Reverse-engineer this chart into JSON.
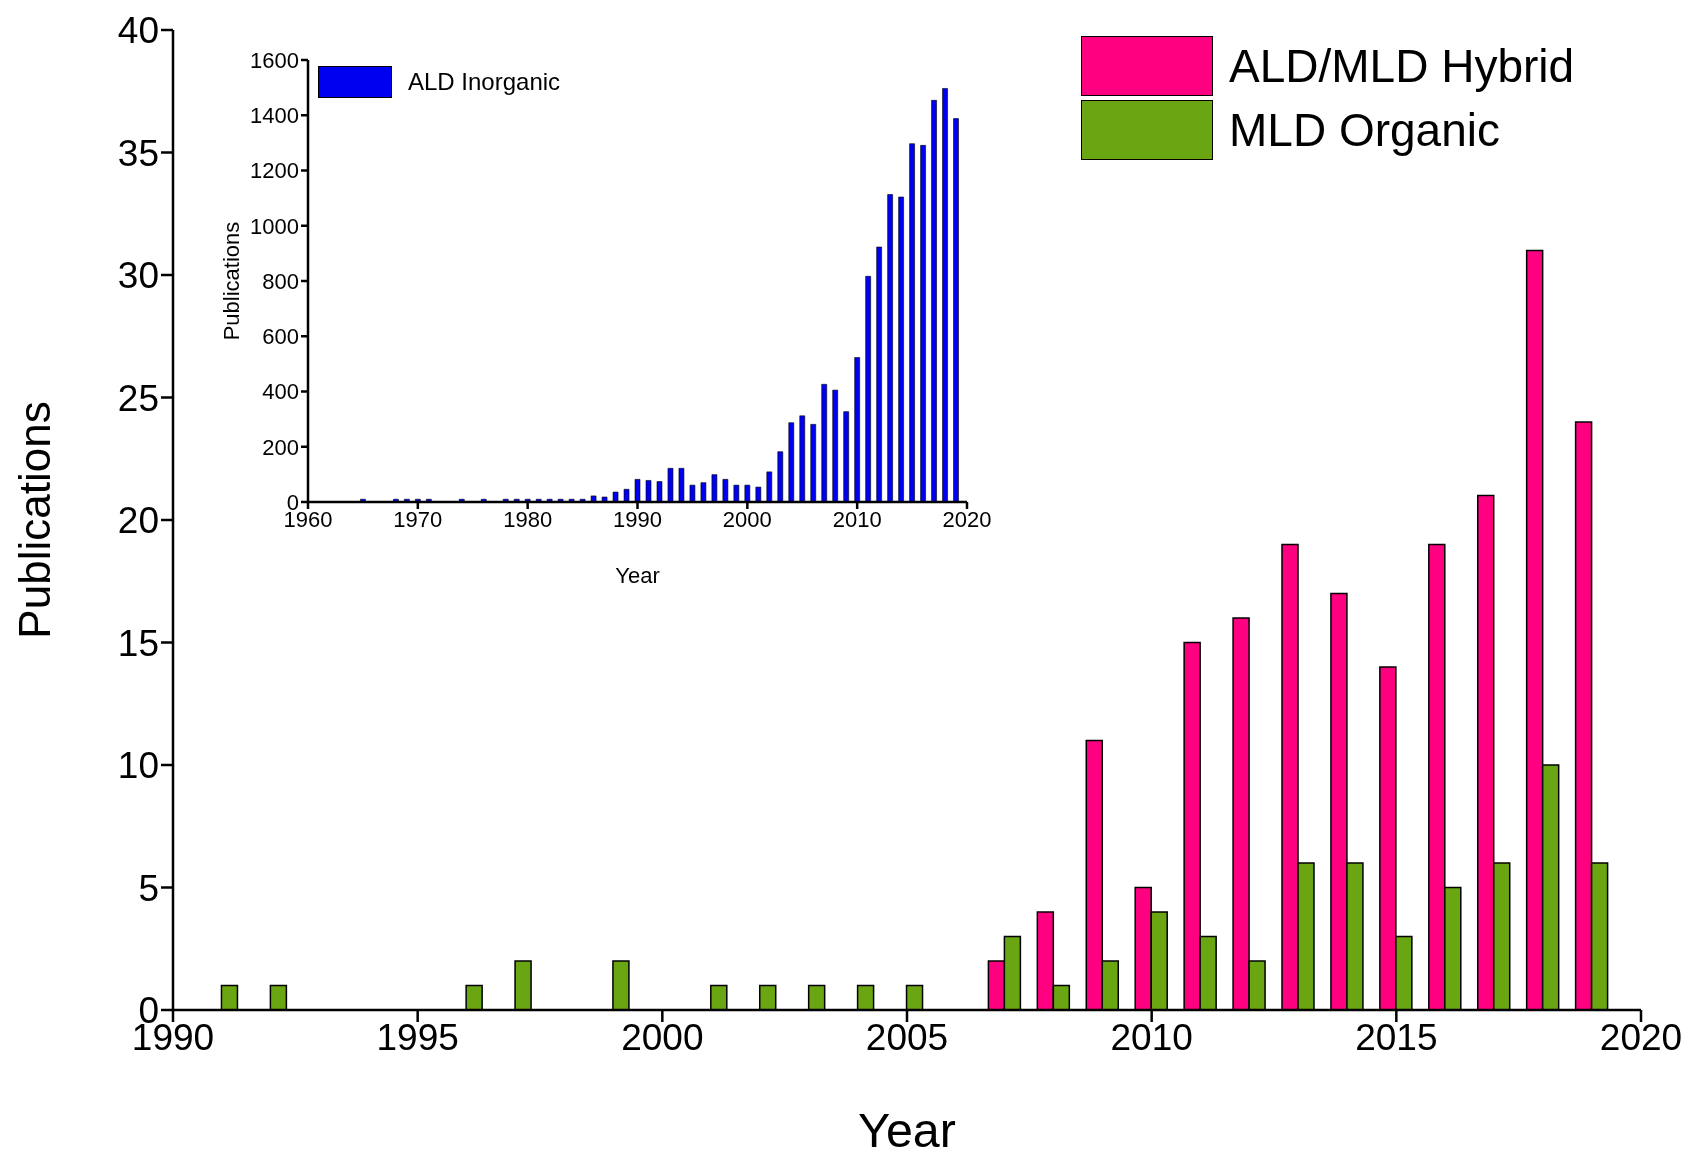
{
  "chart_data": [
    {
      "type": "bar",
      "xlabel": "Year",
      "ylabel": "Publications",
      "x": [
        1991,
        1992,
        1993,
        1994,
        1995,
        1996,
        1997,
        1998,
        1999,
        2000,
        2001,
        2002,
        2003,
        2004,
        2005,
        2006,
        2007,
        2008,
        2009,
        2010,
        2011,
        2012,
        2013,
        2014,
        2015,
        2016,
        2017,
        2018,
        2019
      ],
      "series": [
        {
          "name": "ALD/MLD Hybrid",
          "color": "#ff0080",
          "values": [
            null,
            null,
            null,
            null,
            null,
            null,
            null,
            null,
            null,
            null,
            null,
            null,
            null,
            null,
            null,
            null,
            2,
            4,
            11,
            5,
            15,
            16,
            19,
            17,
            14,
            19,
            21,
            31,
            24
          ]
        },
        {
          "name": "MLD Organic",
          "color": "#6aa512",
          "values": [
            1,
            1,
            null,
            null,
            null,
            1,
            2,
            null,
            2,
            null,
            1,
            1,
            1,
            1,
            1,
            null,
            3,
            1,
            2,
            4,
            3,
            2,
            6,
            6,
            3,
            5,
            6,
            10,
            6
          ]
        }
      ],
      "xlim": [
        1990,
        2020
      ],
      "xticks": [
        1990,
        1995,
        2000,
        2005,
        2010,
        2015,
        2020
      ],
      "ylim": [
        0,
        40
      ],
      "yticks": [
        0,
        5,
        10,
        15,
        20,
        25,
        30,
        35,
        40
      ],
      "legend": "top right"
    },
    {
      "type": "bar",
      "xlabel": "Year",
      "ylabel": "Publications",
      "x": [
        1965,
        1968,
        1969,
        1970,
        1971,
        1974,
        1976,
        1978,
        1979,
        1980,
        1981,
        1982,
        1983,
        1984,
        1985,
        1986,
        1987,
        1988,
        1989,
        1990,
        1991,
        1992,
        1993,
        1994,
        1995,
        1996,
        1997,
        1998,
        1999,
        2000,
        2001,
        2002,
        2003,
        2004,
        2005,
        2006,
        2007,
        2008,
        2009,
        2010,
        2011,
        2012,
        2013,
        2014,
        2015,
        2016,
        2017,
        2018,
        2019
      ],
      "series": [
        {
          "name": "ALD Inorganic",
          "color": "#0000f0",
          "values": [
            10,
            10,
            10,
            10,
            10,
            10,
            10,
            10,
            10,
            10,
            10,
            10,
            10,
            10,
            10,
            22,
            18,
            36,
            46,
            82,
            78,
            74,
            122,
            122,
            61,
            70,
            99,
            82,
            61,
            61,
            54,
            109,
            182,
            287,
            312,
            281,
            426,
            405,
            327,
            523,
            817,
            923,
            1113,
            1104,
            1297,
            1291,
            1454,
            1497,
            1388
          ]
        }
      ],
      "xlim": [
        1960,
        2020
      ],
      "xticks": [
        1960,
        1970,
        1980,
        1990,
        2000,
        2010,
        2020
      ],
      "ylim": [
        0,
        1600
      ],
      "yticks": [
        0,
        200,
        400,
        600,
        800,
        1000,
        1200,
        1400,
        1600
      ],
      "legend": "top left"
    }
  ]
}
